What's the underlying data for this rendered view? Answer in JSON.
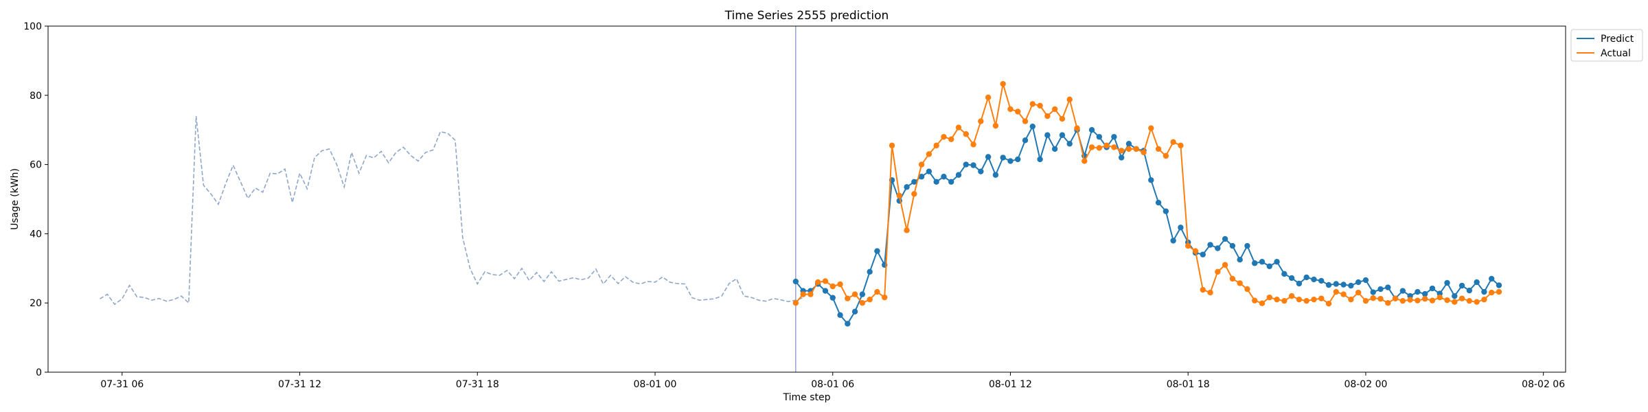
{
  "chart_data": {
    "type": "line",
    "title": "Time Series 2555 prediction",
    "xlabel": "Time step",
    "ylabel": "Usage (kWh)",
    "ylim": [
      0,
      100
    ],
    "xlim": [
      "2023-07-31T03:30",
      "2023-08-02T06:45"
    ],
    "x_ticks": [
      {
        "t": "2023-07-31T06:00",
        "label": "07-31 06"
      },
      {
        "t": "2023-07-31T12:00",
        "label": "07-31 12"
      },
      {
        "t": "2023-07-31T18:00",
        "label": "07-31 18"
      },
      {
        "t": "2023-08-01T00:00",
        "label": "08-01 00"
      },
      {
        "t": "2023-08-01T06:00",
        "label": "08-01 06"
      },
      {
        "t": "2023-08-01T12:00",
        "label": "08-01 12"
      },
      {
        "t": "2023-08-01T18:00",
        "label": "08-01 18"
      },
      {
        "t": "2023-08-02T00:00",
        "label": "08-02 00"
      },
      {
        "t": "2023-08-02T06:00",
        "label": "08-02 06"
      }
    ],
    "y_ticks": [
      0,
      20,
      40,
      60,
      80,
      100
    ],
    "interval_minutes": 15,
    "forecast_start": "2023-08-01T04:45",
    "legend_position": "upper-right-outside",
    "series": [
      {
        "name": "",
        "role": "history",
        "style": "dashed",
        "color": "#8ea6c8",
        "start": "2023-07-31T05:15",
        "values": [
          21.2,
          22.5,
          19.6,
          21.2,
          25.1,
          21.8,
          21.6,
          20.8,
          21.3,
          20.5,
          21.0,
          22.0,
          20.0,
          74.0,
          54.0,
          51.5,
          48.5,
          54.5,
          59.8,
          55.0,
          50.2,
          53.2,
          52.0,
          57.5,
          57.3,
          58.7,
          49.0,
          57.5,
          53.0,
          62.0,
          64.0,
          64.5,
          60.0,
          53.5,
          63.5,
          57.5,
          62.6,
          61.9,
          63.8,
          60.5,
          63.5,
          65.0,
          62.6,
          61.0,
          63.5,
          64.2,
          69.5,
          69.0,
          67.0,
          39.0,
          30.0,
          25.5,
          29.0,
          28.2,
          28.0,
          29.4,
          27.0,
          30.0,
          26.5,
          28.8,
          26.2,
          29.0,
          26.3,
          26.8,
          27.3,
          26.7,
          27.2,
          29.8,
          25.5,
          28.0,
          25.6,
          27.6,
          26.0,
          25.5,
          26.2,
          26.0,
          27.5,
          26.0,
          25.6,
          25.5,
          21.5,
          20.8,
          21.0,
          21.2,
          22.0,
          25.6,
          27.0,
          22.0,
          21.6,
          20.8,
          20.5,
          21.3,
          20.9,
          20.4,
          20.8,
          21.5
        ]
      },
      {
        "name": "Predict",
        "role": "forecast",
        "color": "#1f77b4",
        "start": "2023-08-01T04:45",
        "values": [
          26.2,
          23.5,
          23.5,
          25.5,
          23.5,
          21.5,
          16.5,
          14.0,
          17.5,
          22.5,
          29.0,
          35.0,
          31.0,
          55.5,
          49.5,
          53.5,
          55.0,
          56.5,
          58.0,
          55.0,
          56.5,
          55.0,
          57.0,
          60.0,
          59.8,
          58.0,
          62.2,
          57.0,
          62.0,
          61.0,
          61.5,
          67.0,
          71.0,
          61.5,
          68.5,
          64.5,
          68.5,
          66.0,
          70.0,
          62.5,
          70.0,
          68.0,
          65.0,
          68.0,
          62.0,
          66.0,
          64.5,
          64.0,
          55.5,
          49.0,
          46.5,
          38.0,
          41.8,
          37.5,
          34.5,
          34.0,
          36.8,
          35.8,
          38.5,
          36.5,
          32.5,
          36.5,
          31.5,
          31.9,
          30.6,
          31.9,
          28.4,
          27.2,
          25.6,
          27.4,
          26.8,
          26.4,
          25.2,
          25.5,
          25.3,
          25.0,
          26.0,
          26.6,
          23.1,
          24.0,
          24.5,
          21.3,
          23.5,
          22.0,
          23.2,
          22.6,
          24.2,
          22.7,
          25.8,
          22.0,
          25.0,
          23.6,
          26.0,
          23.2,
          27.0,
          25.1
        ]
      },
      {
        "name": "Actual",
        "role": "actual",
        "color": "#ff7f0e",
        "start": "2023-08-01T04:45",
        "values": [
          20.0,
          22.5,
          22.5,
          26.0,
          26.3,
          24.8,
          25.4,
          21.3,
          22.5,
          20.0,
          21.0,
          23.2,
          21.6,
          65.5,
          51.0,
          41.0,
          51.5,
          60.0,
          63.0,
          65.5,
          68.0,
          67.3,
          70.7,
          68.8,
          65.8,
          72.5,
          79.4,
          71.2,
          83.3,
          76.0,
          75.3,
          72.5,
          77.5,
          77.0,
          74.0,
          76.0,
          73.2,
          78.8,
          70.5,
          61.0,
          65.0,
          64.8,
          65.5,
          65.0,
          64.0,
          64.5,
          64.5,
          63.5,
          70.5,
          64.5,
          62.5,
          66.5,
          65.5,
          36.5,
          35.0,
          23.8,
          23.0,
          29.0,
          31.0,
          27.0,
          25.7,
          24.0,
          20.7,
          19.9,
          21.6,
          21.0,
          20.6,
          22.0,
          21.0,
          20.6,
          21.0,
          21.3,
          19.8,
          23.2,
          22.5,
          21.0,
          23.0,
          20.6,
          21.4,
          21.2,
          20.0,
          21.3,
          20.6,
          20.9,
          20.7,
          21.2,
          20.7,
          21.6,
          20.8,
          20.3,
          21.3,
          20.6,
          20.3,
          21.0,
          23.0,
          23.2
        ]
      }
    ]
  }
}
